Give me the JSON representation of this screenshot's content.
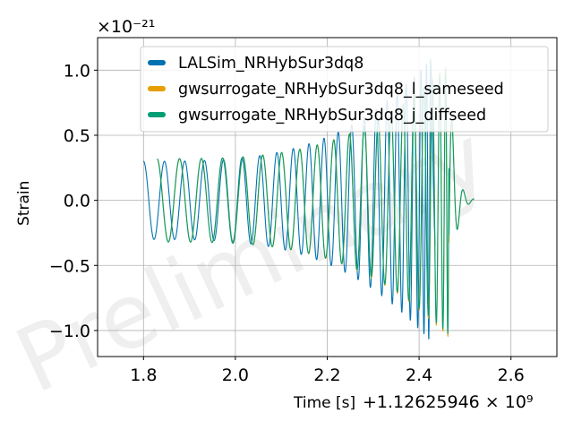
{
  "chart_data": {
    "type": "line",
    "ylabel": "Strain",
    "xlabel": "Time [s]",
    "x_offset_label": "+1.12625946 × 10⁹",
    "y_scale_label": "×10⁻²¹",
    "xlim": [
      1.7,
      2.7
    ],
    "ylim": [
      -1.2,
      1.25
    ],
    "xticks": [
      1.8,
      2.0,
      2.2,
      2.4,
      2.6
    ],
    "xtick_labels": [
      "1.8",
      "2.0",
      "2.2",
      "2.4",
      "2.6"
    ],
    "yticks": [
      1.0,
      0.5,
      0.0,
      -0.5,
      -1.0
    ],
    "ytick_labels": [
      "1.0",
      "0.5",
      "0.0",
      "−0.5",
      "−1.0"
    ],
    "grid": true,
    "legend_position": "top-right",
    "watermark": "Preliminary",
    "series": [
      {
        "name": "LALSim_NRHybSur3dq8",
        "color": "#0072b2",
        "start": 1.8,
        "end": 2.435,
        "merger": 2.425,
        "amp_start": 0.3,
        "amp_peak": 1.1,
        "phase_span": 138
      },
      {
        "name": "gwsurrogate_NRHybSur3dq8_l_sameseed",
        "color": "#e69f00",
        "start": 1.83,
        "end": 2.52,
        "merger": 2.465,
        "amp_start": 0.32,
        "amp_peak": 1.07,
        "phase_span": 130
      },
      {
        "name": "gwsurrogate_NRHybSur3dq8_j_diffseed",
        "color": "#009e73",
        "start": 1.83,
        "end": 2.52,
        "merger": 2.465,
        "amp_start": 0.32,
        "amp_peak": 1.05,
        "phase_span": 130
      }
    ]
  }
}
